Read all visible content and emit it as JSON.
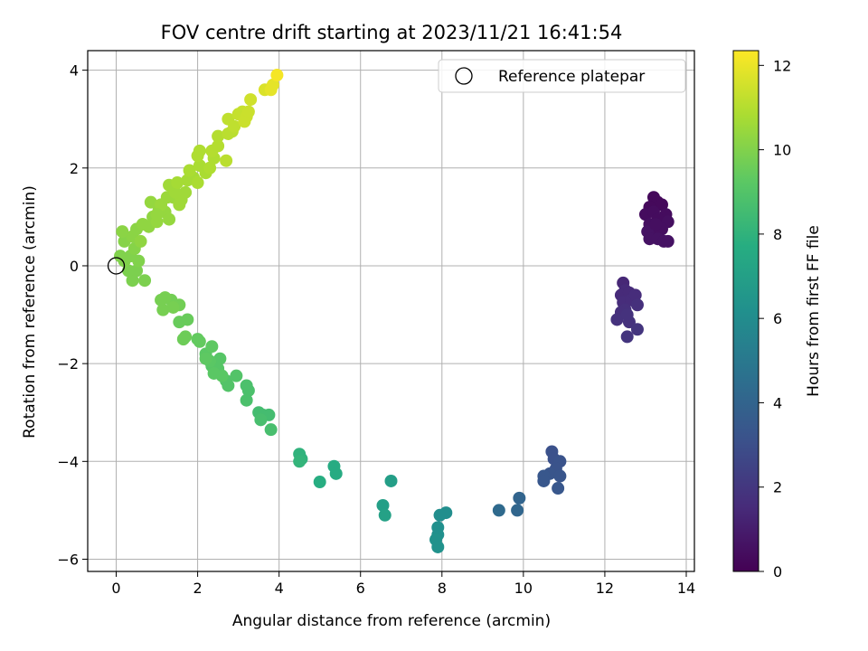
{
  "chart_data": {
    "type": "scatter",
    "title": "FOV centre drift starting at 2023/11/21 16:41:54",
    "xlabel": "Angular distance from reference (arcmin)",
    "ylabel": "Rotation from reference (arcmin)",
    "xlim": [
      -0.7,
      14.2
    ],
    "ylim": [
      -6.25,
      4.4
    ],
    "xticks": [
      0,
      2,
      4,
      6,
      8,
      10,
      12,
      14
    ],
    "yticks": [
      -6,
      -4,
      -2,
      0,
      2,
      4
    ],
    "grid": true,
    "colormap": "viridis",
    "colorbar": {
      "label": "Hours from first FF file",
      "range": [
        0,
        12.35
      ],
      "ticks": [
        0,
        2,
        4,
        6,
        8,
        10,
        12
      ]
    },
    "legend": {
      "position": "top-right",
      "entries": [
        {
          "label": "Reference platepar",
          "marker": "open-circle"
        }
      ]
    },
    "reference_point": {
      "x": 0,
      "y": 0
    },
    "series": [
      {
        "points": [
          [
            13.2,
            1.4,
            0.3
          ],
          [
            13.3,
            1.3,
            0.3
          ],
          [
            13.1,
            1.2,
            0.3
          ],
          [
            13.4,
            1.25,
            0.3
          ],
          [
            13.0,
            1.05,
            0.4
          ],
          [
            13.2,
            1.1,
            0.4
          ],
          [
            13.5,
            1.05,
            0.4
          ],
          [
            13.3,
            0.95,
            0.4
          ],
          [
            13.1,
            0.85,
            0.5
          ],
          [
            13.55,
            0.9,
            0.5
          ],
          [
            13.2,
            0.7,
            0.5
          ],
          [
            13.4,
            0.75,
            0.5
          ],
          [
            13.05,
            0.7,
            0.6
          ],
          [
            13.1,
            0.55,
            0.6
          ],
          [
            13.3,
            0.55,
            0.6
          ],
          [
            13.45,
            0.5,
            0.6
          ],
          [
            13.55,
            0.5,
            0.6
          ],
          [
            13.25,
            0.85,
            0.5
          ],
          [
            12.45,
            -0.35,
            1.4
          ],
          [
            12.5,
            -0.5,
            1.5
          ],
          [
            12.4,
            -0.6,
            1.5
          ],
          [
            12.6,
            -0.55,
            1.5
          ],
          [
            12.45,
            -0.75,
            1.6
          ],
          [
            12.65,
            -0.7,
            1.6
          ],
          [
            12.5,
            -0.9,
            1.7
          ],
          [
            12.75,
            -0.6,
            1.6
          ],
          [
            12.8,
            -0.8,
            1.7
          ],
          [
            12.4,
            -0.95,
            1.7
          ],
          [
            12.3,
            -1.1,
            1.8
          ],
          [
            12.6,
            -1.15,
            1.8
          ],
          [
            12.55,
            -1.45,
            1.9
          ],
          [
            12.8,
            -1.3,
            1.9
          ],
          [
            12.55,
            -1.0,
            1.8
          ],
          [
            10.7,
            -3.8,
            3.1
          ],
          [
            10.75,
            -3.95,
            3.1
          ],
          [
            10.9,
            -4.0,
            3.2
          ],
          [
            10.8,
            -4.15,
            3.2
          ],
          [
            10.65,
            -4.25,
            3.3
          ],
          [
            10.9,
            -4.3,
            3.3
          ],
          [
            10.5,
            -4.3,
            3.4
          ],
          [
            10.5,
            -4.4,
            3.4
          ],
          [
            10.85,
            -4.55,
            3.4
          ],
          [
            9.9,
            -4.75,
            4.0
          ],
          [
            9.85,
            -5.0,
            4.1
          ],
          [
            9.4,
            -5.0,
            4.3
          ],
          [
            8.1,
            -5.05,
            6.1
          ],
          [
            7.95,
            -5.1,
            6.1
          ],
          [
            7.9,
            -5.35,
            6.2
          ],
          [
            7.9,
            -5.5,
            6.2
          ],
          [
            7.85,
            -5.6,
            6.3
          ],
          [
            7.9,
            -5.75,
            6.3
          ],
          [
            6.75,
            -4.4,
            6.9
          ],
          [
            6.55,
            -4.9,
            7.0
          ],
          [
            6.6,
            -5.1,
            7.1
          ],
          [
            5.35,
            -4.1,
            7.6
          ],
          [
            5.4,
            -4.25,
            7.6
          ],
          [
            5.0,
            -4.42,
            7.7
          ],
          [
            4.5,
            -3.85,
            8.0
          ],
          [
            4.55,
            -3.95,
            8.0
          ],
          [
            4.5,
            -4.0,
            8.1
          ],
          [
            3.5,
            -3.0,
            8.6
          ],
          [
            3.6,
            -3.05,
            8.6
          ],
          [
            3.75,
            -3.05,
            8.6
          ],
          [
            3.55,
            -3.15,
            8.7
          ],
          [
            3.8,
            -3.35,
            8.7
          ],
          [
            3.2,
            -2.45,
            8.8
          ],
          [
            3.25,
            -2.55,
            8.8
          ],
          [
            3.2,
            -2.75,
            8.8
          ],
          [
            2.95,
            -2.25,
            9.0
          ],
          [
            2.7,
            -2.35,
            9.0
          ],
          [
            2.75,
            -2.45,
            9.0
          ],
          [
            2.55,
            -1.9,
            9.1
          ],
          [
            2.45,
            -2.0,
            9.1
          ],
          [
            2.35,
            -2.05,
            9.1
          ],
          [
            2.5,
            -2.1,
            9.1
          ],
          [
            2.4,
            -2.2,
            9.2
          ],
          [
            2.6,
            -2.25,
            9.2
          ],
          [
            2.2,
            -1.8,
            9.2
          ],
          [
            2.3,
            -1.95,
            9.2
          ],
          [
            2.35,
            -1.65,
            9.3
          ],
          [
            2.2,
            -1.9,
            9.3
          ],
          [
            2.0,
            -1.5,
            9.4
          ],
          [
            2.05,
            -1.55,
            9.4
          ],
          [
            1.75,
            -1.1,
            9.5
          ],
          [
            1.55,
            -1.15,
            9.5
          ],
          [
            1.7,
            -1.45,
            9.6
          ],
          [
            1.65,
            -1.5,
            9.6
          ],
          [
            1.55,
            -0.8,
            9.7
          ],
          [
            1.35,
            -0.7,
            9.7
          ],
          [
            1.2,
            -0.65,
            9.8
          ],
          [
            1.1,
            -0.7,
            9.8
          ],
          [
            1.4,
            -0.85,
            9.8
          ],
          [
            1.15,
            -0.9,
            9.8
          ],
          [
            0.7,
            -0.3,
            9.9
          ],
          [
            0.4,
            -0.3,
            9.9
          ],
          [
            0.5,
            -0.1,
            9.9
          ],
          [
            0.3,
            -0.1,
            9.9
          ],
          [
            0.55,
            0.1,
            10.0
          ],
          [
            0.35,
            0.2,
            10.0
          ],
          [
            0.2,
            0.1,
            10.0
          ],
          [
            0.1,
            0.2,
            10.0
          ],
          [
            0.45,
            0.35,
            10.1
          ],
          [
            0.2,
            0.5,
            10.1
          ],
          [
            0.4,
            0.6,
            10.2
          ],
          [
            0.15,
            0.7,
            10.2
          ],
          [
            0.5,
            0.75,
            10.2
          ],
          [
            0.65,
            0.85,
            10.3
          ],
          [
            0.8,
            0.8,
            10.3
          ],
          [
            0.6,
            0.5,
            10.3
          ],
          [
            0.9,
            1.0,
            10.3
          ],
          [
            1.0,
            0.9,
            10.4
          ],
          [
            1.2,
            1.1,
            10.4
          ],
          [
            1.3,
            0.95,
            10.4
          ],
          [
            1.05,
            1.15,
            10.4
          ],
          [
            0.85,
            1.3,
            10.4
          ],
          [
            1.1,
            1.25,
            10.5
          ],
          [
            1.4,
            1.4,
            10.5
          ],
          [
            1.25,
            1.4,
            10.5
          ],
          [
            1.55,
            1.25,
            10.6
          ],
          [
            1.6,
            1.35,
            10.6
          ],
          [
            1.7,
            1.5,
            10.6
          ],
          [
            1.45,
            1.5,
            10.6
          ],
          [
            1.3,
            1.65,
            10.6
          ],
          [
            1.5,
            1.7,
            10.7
          ],
          [
            1.75,
            1.75,
            10.7
          ],
          [
            1.9,
            1.8,
            10.7
          ],
          [
            1.8,
            1.95,
            10.8
          ],
          [
            2.0,
            1.7,
            10.8
          ],
          [
            2.2,
            1.9,
            10.8
          ],
          [
            2.05,
            2.05,
            10.8
          ],
          [
            2.3,
            2.0,
            10.9
          ],
          [
            2.0,
            2.25,
            10.9
          ],
          [
            2.4,
            2.2,
            10.9
          ],
          [
            2.35,
            2.35,
            11.0
          ],
          [
            2.5,
            2.45,
            11.0
          ],
          [
            2.5,
            2.65,
            11.0
          ],
          [
            2.7,
            2.15,
            11.1
          ],
          [
            2.75,
            2.7,
            11.1
          ],
          [
            2.85,
            2.75,
            11.1
          ],
          [
            2.75,
            3.0,
            11.2
          ],
          [
            2.9,
            2.85,
            11.2
          ],
          [
            3.0,
            3.1,
            11.3
          ],
          [
            3.1,
            3.15,
            11.3
          ],
          [
            3.2,
            3.05,
            11.4
          ],
          [
            3.15,
            2.95,
            11.4
          ],
          [
            3.25,
            3.15,
            11.4
          ],
          [
            3.3,
            3.4,
            11.5
          ],
          [
            3.65,
            3.6,
            11.7
          ],
          [
            3.85,
            3.7,
            11.9
          ],
          [
            3.8,
            3.6,
            11.9
          ],
          [
            3.95,
            3.9,
            12.2
          ],
          [
            2.05,
            2.35,
            10.9
          ],
          [
            1.0,
            1.05,
            10.4
          ]
        ]
      }
    ]
  }
}
